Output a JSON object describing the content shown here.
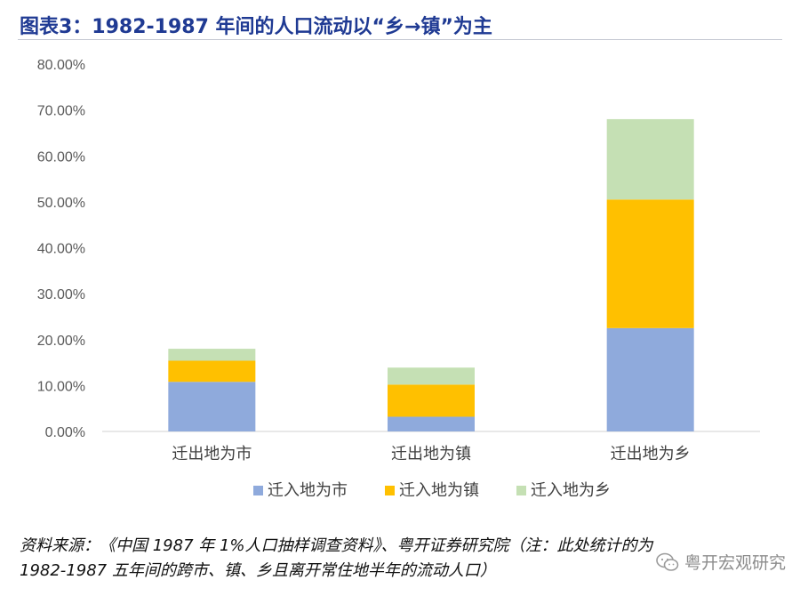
{
  "title": "图表3：1982-1987 年间的人口流动以“乡→镇”为主",
  "source_line1": "资料来源：《中国 1987 年 1%人口抽样调查资料》、粤开证券研究院（注：此处统计的为",
  "source_line2": "1982-1987 五年间的跨市、镇、乡且离开常住地半年的流动人口）",
  "watermark": "粤开宏观研究",
  "colors": {
    "city": "#8faadc",
    "town": "#ffc000",
    "village": "#c5e0b4",
    "title": "#1f3a93"
  },
  "chart_data": {
    "type": "bar",
    "stacked": true,
    "categories": [
      "迁出地为市",
      "迁出地为镇",
      "迁出地为乡"
    ],
    "series": [
      {
        "name": "迁入地为市",
        "values": [
          10.8,
          3.2,
          22.5
        ]
      },
      {
        "name": "迁入地为镇",
        "values": [
          4.6,
          7.0,
          28.0
        ]
      },
      {
        "name": "迁入地为乡",
        "values": [
          2.6,
          3.7,
          17.5
        ]
      }
    ],
    "ylim": [
      0,
      80
    ],
    "yticks": [
      "0.00%",
      "10.00%",
      "20.00%",
      "30.00%",
      "40.00%",
      "50.00%",
      "60.00%",
      "70.00%",
      "80.00%"
    ],
    "grid": false,
    "legend": "bottom"
  }
}
